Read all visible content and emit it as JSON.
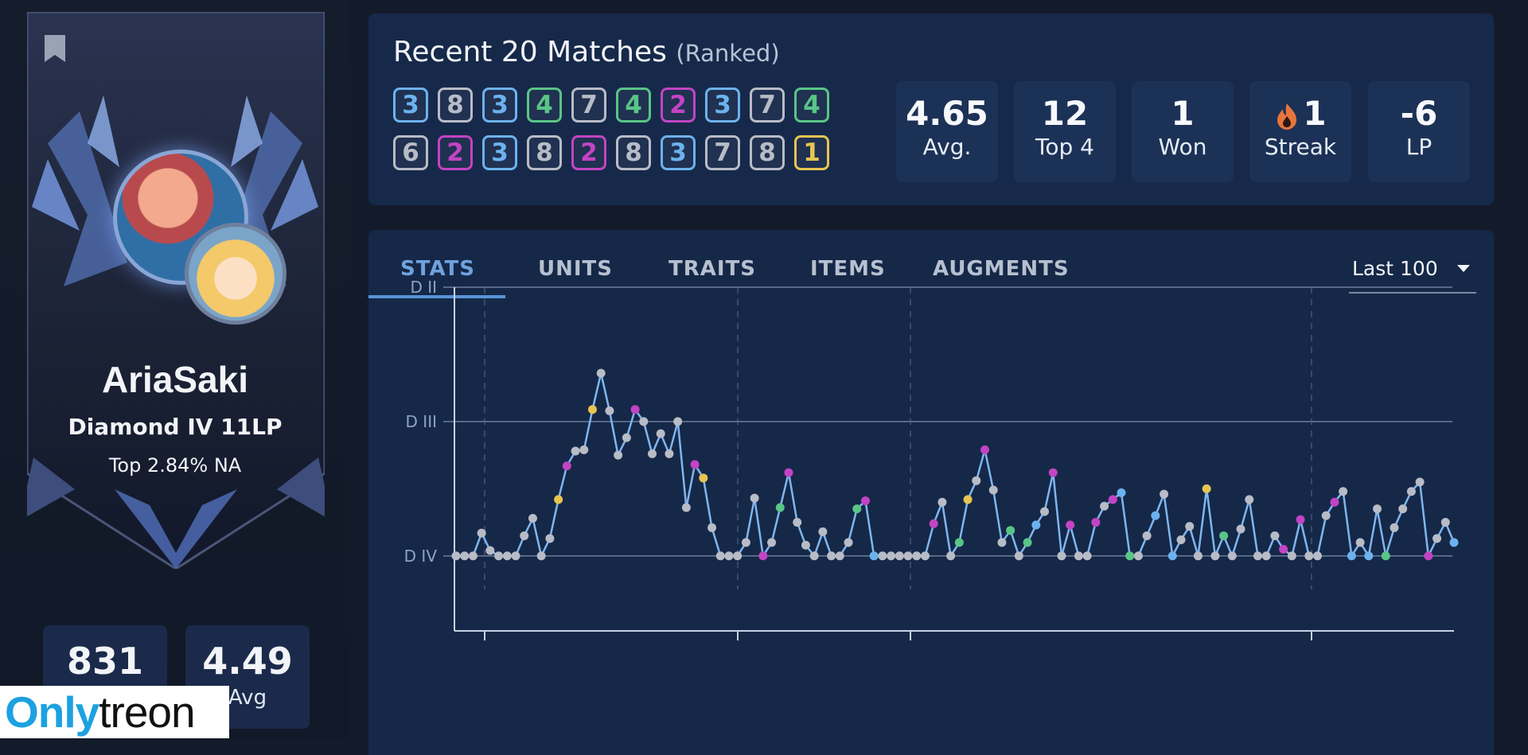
{
  "profile": {
    "name": "AriaSaki",
    "rank": "Diamond IV 11LP",
    "top_percent": "Top 2.84% NA",
    "games_value": "831",
    "games_label": "",
    "avg_value": "4.49",
    "avg_label": "Avg"
  },
  "watermark": {
    "part1": "Only",
    "part2": "treon"
  },
  "recent": {
    "title": "Recent 20 Matches",
    "subtitle": "(Ranked)",
    "placements": [
      3,
      8,
      3,
      4,
      7,
      4,
      2,
      3,
      7,
      4,
      6,
      2,
      3,
      8,
      2,
      8,
      3,
      7,
      8,
      1
    ],
    "stats": [
      {
        "value": "4.65",
        "label": "Avg."
      },
      {
        "value": "12",
        "label": "Top 4"
      },
      {
        "value": "1",
        "label": "Won"
      },
      {
        "value": "1",
        "label": "Streak",
        "icon": "fire-icon"
      },
      {
        "value": "-6",
        "label": "LP"
      }
    ]
  },
  "placement_colors": {
    "1": "#e7c451",
    "2": "#c244c4",
    "3": "#6cb2ee",
    "4": "#59c586",
    "5": "#b8bcc6",
    "6": "#b8bcc6",
    "7": "#b8bcc6",
    "8": "#b8bcc6"
  },
  "tabs": [
    "STATS",
    "UNITS",
    "TRAITS",
    "ITEMS",
    "AUGMENTS"
  ],
  "active_tab": "STATS",
  "range": "Last 100",
  "chart_data": {
    "type": "line",
    "title": "",
    "xlabel": "",
    "ylabel": "",
    "y_ticks": [
      "D IV",
      "D III",
      "D II"
    ],
    "y_tick_values": [
      0,
      1,
      2
    ],
    "ylim": [
      -0.25,
      2
    ],
    "grid": true,
    "line_color": "#7fb6ef",
    "point_placements": [
      8,
      8,
      8,
      5,
      7,
      8,
      8,
      8,
      5,
      5,
      8,
      5,
      1,
      2,
      6,
      5,
      1,
      7,
      8,
      6,
      5,
      2,
      7,
      6,
      8,
      7,
      8,
      6,
      2,
      1,
      8,
      6,
      7,
      8,
      8,
      8,
      2,
      8,
      4,
      2,
      6,
      5,
      5,
      8,
      5,
      8,
      8,
      4,
      2,
      3,
      8,
      8,
      8,
      8,
      8,
      8,
      2,
      5,
      8,
      4,
      1,
      5,
      2,
      7,
      5,
      4,
      8,
      4,
      3,
      5,
      2,
      8,
      2,
      8,
      8,
      2,
      8,
      2,
      3,
      4,
      8,
      8,
      3,
      5,
      3,
      5,
      5,
      8,
      1,
      8,
      4,
      5,
      5,
      8,
      8,
      5,
      8,
      2,
      8,
      2,
      8,
      7,
      8,
      2,
      5,
      3,
      8,
      3,
      8,
      4,
      8,
      6,
      5,
      8,
      2,
      8,
      5,
      3
    ],
    "values": [
      0.0,
      0.0,
      0.0,
      0.17,
      0.04,
      0.0,
      0.0,
      0.0,
      0.15,
      0.28,
      0.0,
      0.13,
      0.42,
      0.67,
      0.78,
      0.79,
      1.09,
      1.36,
      1.08,
      0.75,
      0.88,
      1.09,
      1.0,
      0.76,
      0.91,
      0.76,
      1.0,
      0.36,
      0.68,
      0.58,
      0.21,
      0.0,
      0.0,
      0.0,
      0.1,
      0.43,
      0.0,
      0.1,
      0.36,
      0.62,
      0.25,
      0.08,
      0.0,
      0.18,
      0.0,
      0.0,
      0.1,
      0.35,
      0.41,
      0.0,
      0.0,
      0.0,
      0.0,
      0.0,
      0.0,
      0.0,
      0.24,
      0.4,
      0.0,
      0.1,
      0.42,
      0.56,
      0.79,
      0.49,
      0.1,
      0.19,
      0.0,
      0.1,
      0.23,
      0.33,
      0.62,
      0.0,
      0.23,
      0.0,
      0.0,
      0.25,
      0.37,
      0.42,
      0.47,
      0.0,
      0.0,
      0.15,
      0.3,
      0.46,
      0.0,
      0.12,
      0.22,
      0.0,
      0.5,
      0.0,
      0.15,
      0.0,
      0.2,
      0.42,
      0.0,
      0.0,
      0.15,
      0.05,
      0.0,
      0.27,
      0.0,
      0.0,
      0.3,
      0.4,
      0.48,
      0.0,
      0.1,
      0.0,
      0.35,
      0.0,
      0.21,
      0.35,
      0.48,
      0.55,
      0.0,
      0.13,
      0.25,
      0.1
    ]
  }
}
